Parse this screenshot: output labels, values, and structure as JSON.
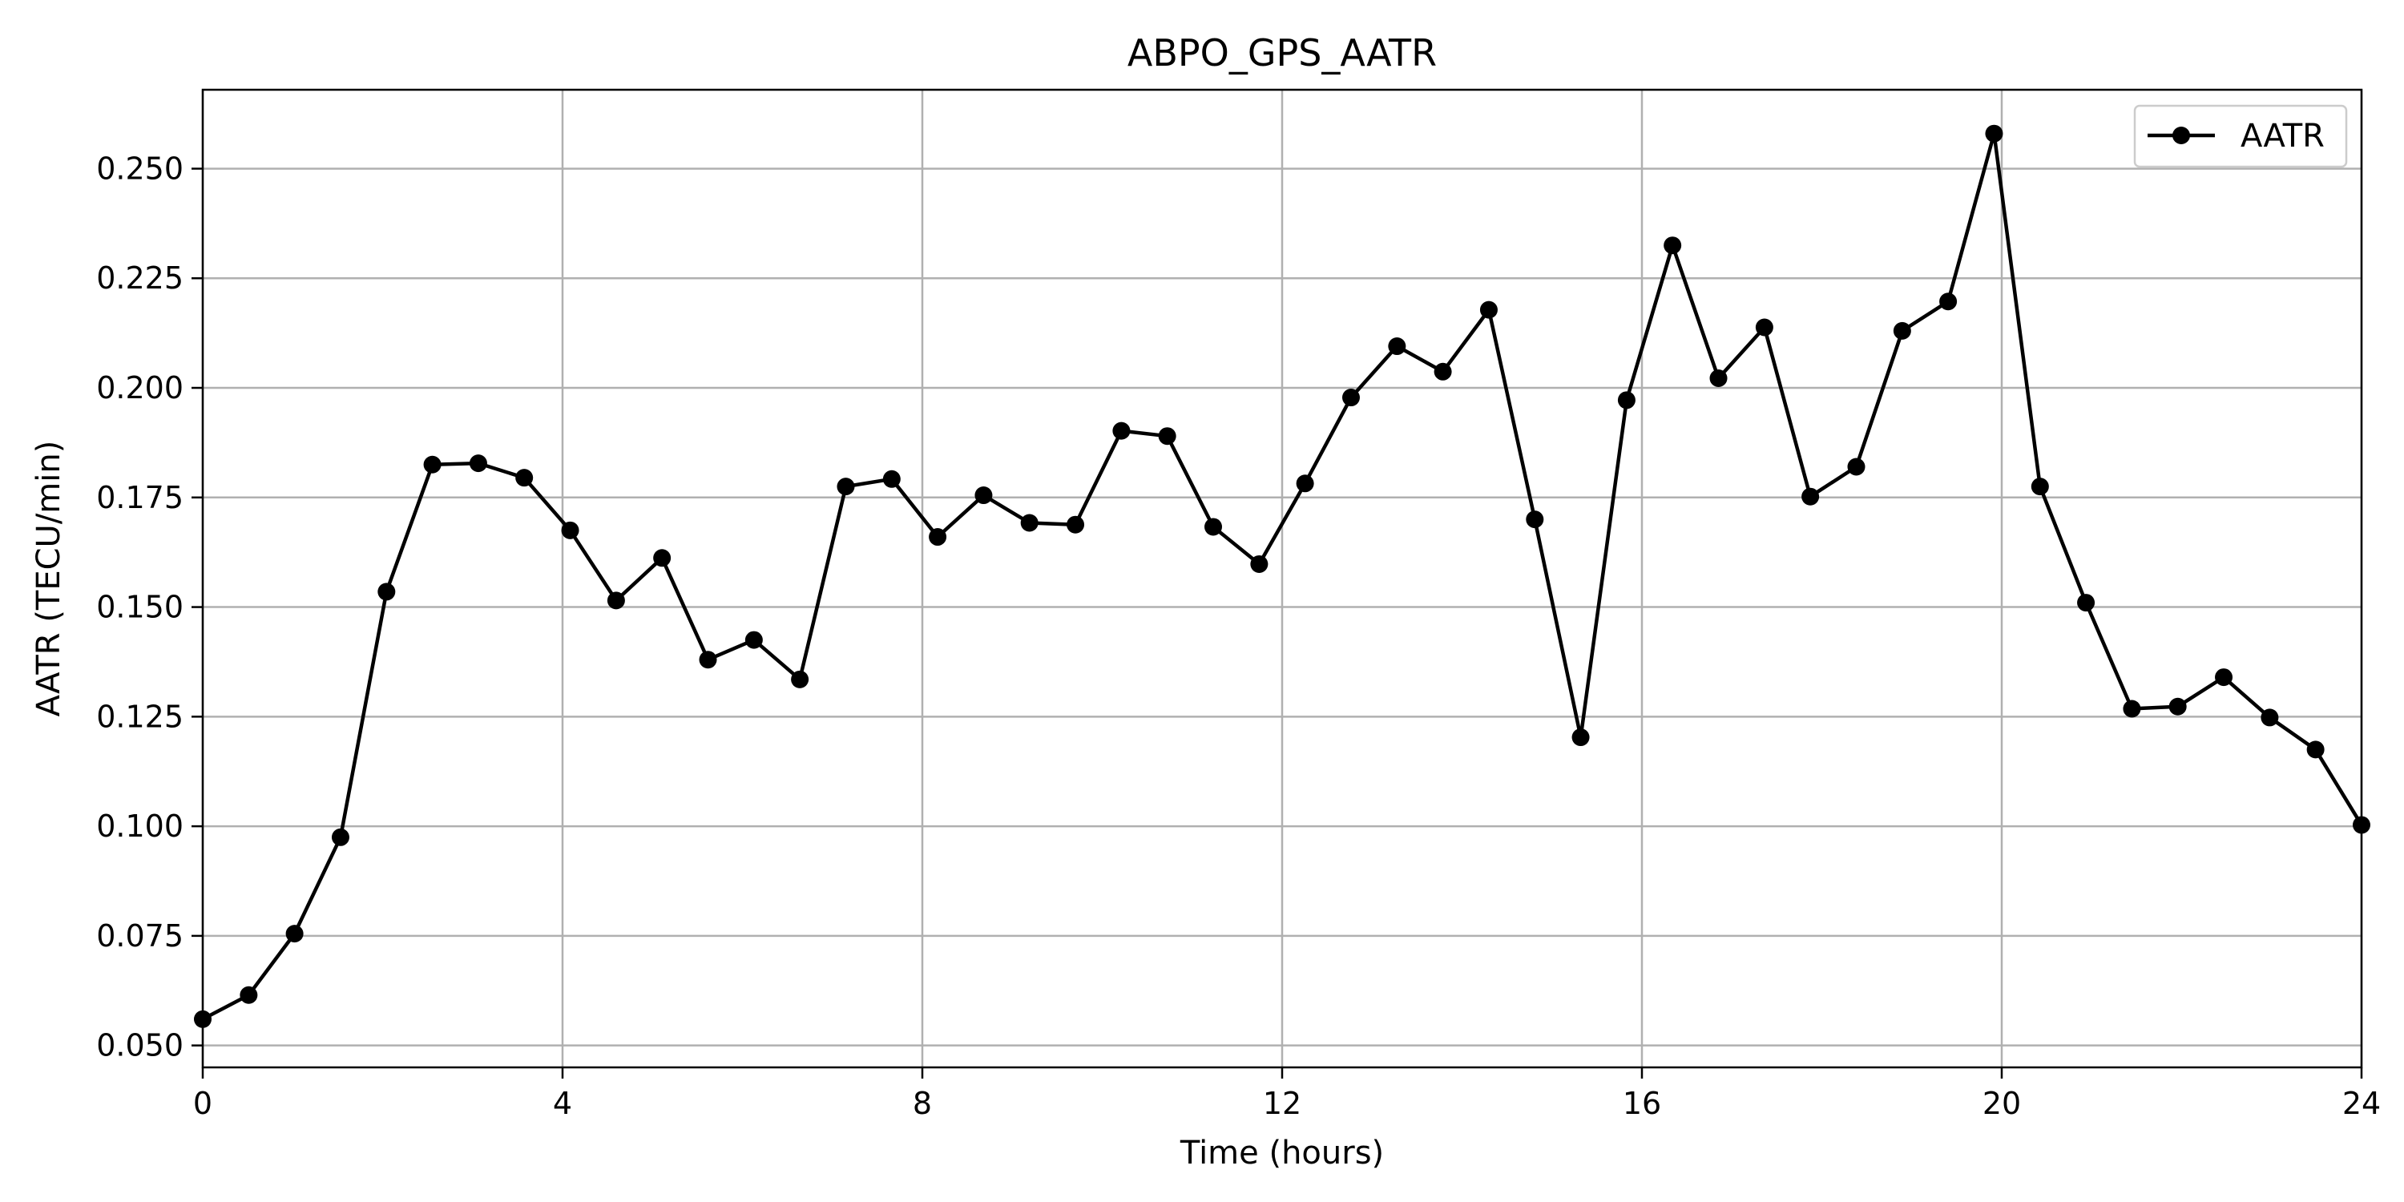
{
  "chart_data": {
    "type": "line",
    "title": "ABPO_GPS_AATR",
    "xlabel": "Time (hours)",
    "ylabel": "AATR (TECU/min)",
    "xlim": [
      0,
      24
    ],
    "ylim": [
      0.045,
      0.268
    ],
    "xticks": [
      0,
      4,
      8,
      12,
      16,
      20,
      24
    ],
    "yticks": [
      0.05,
      0.075,
      0.1,
      0.125,
      0.15,
      0.175,
      0.2,
      0.225,
      0.25
    ],
    "ytick_labels": [
      "0.050",
      "0.075",
      "0.100",
      "0.125",
      "0.150",
      "0.175",
      "0.200",
      "0.225",
      "0.250"
    ],
    "grid": true,
    "legend_position": "top-right",
    "series": [
      {
        "name": "AATR",
        "color": "#000000",
        "marker": "circle",
        "x": [
          0,
          0.511,
          1.021,
          1.532,
          2.043,
          2.553,
          3.064,
          3.574,
          4.085,
          4.596,
          5.106,
          5.617,
          6.128,
          6.638,
          7.149,
          7.66,
          8.17,
          8.681,
          9.191,
          9.702,
          10.213,
          10.723,
          11.234,
          11.745,
          12.255,
          12.766,
          13.277,
          13.787,
          14.298,
          14.809,
          15.319,
          15.83,
          16.34,
          16.851,
          17.362,
          17.872,
          18.383,
          18.894,
          19.404,
          19.915,
          20.426,
          20.936,
          21.447,
          21.957,
          22.468,
          22.979,
          23.489,
          24
        ],
        "y": [
          0.056,
          0.0615,
          0.0755,
          0.0975,
          0.1535,
          0.1825,
          0.1828,
          0.1795,
          0.1675,
          0.1515,
          0.1612,
          0.138,
          0.1425,
          0.1335,
          0.1775,
          0.1792,
          0.166,
          0.1755,
          0.1692,
          0.1688,
          0.1902,
          0.189,
          0.1683,
          0.1598,
          0.1782,
          0.1978,
          0.2095,
          0.2037,
          0.2178,
          0.17,
          0.1203,
          0.1972,
          0.2325,
          0.2022,
          0.2138,
          0.1752,
          0.182,
          0.213,
          0.2197,
          0.258,
          0.1775,
          0.151,
          0.1268,
          0.1273,
          0.134,
          0.1248,
          0.1175,
          0.1003
        ]
      }
    ]
  }
}
